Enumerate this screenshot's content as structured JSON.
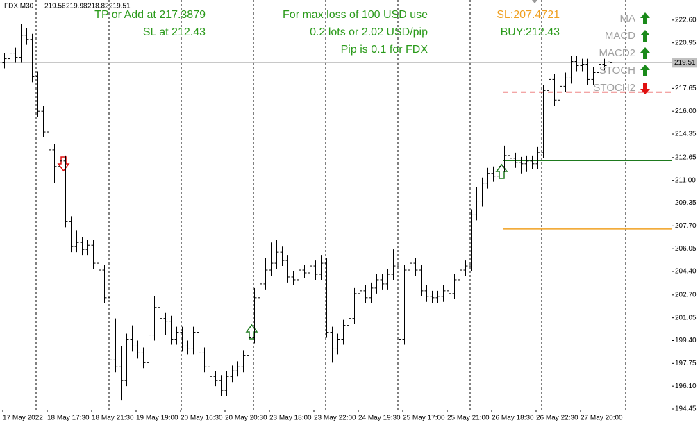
{
  "chart_data": {
    "type": "ohlc",
    "symbol": "FDX,M30",
    "ylim": [
      194.4,
      224.05
    ],
    "yticks": [
      {
        "value": 222.6,
        "label": "222.60"
      },
      {
        "value": 220.95,
        "label": "220.95"
      },
      {
        "value": 217.65,
        "label": "217.65"
      },
      {
        "value": 216.0,
        "label": "216.00"
      },
      {
        "value": 214.35,
        "label": "214.35"
      },
      {
        "value": 212.65,
        "label": "212.65"
      },
      {
        "value": 211.0,
        "label": "211.00"
      },
      {
        "value": 209.35,
        "label": "209.35"
      },
      {
        "value": 207.7,
        "label": "207.70"
      },
      {
        "value": 206.05,
        "label": "206.05"
      },
      {
        "value": 204.4,
        "label": "204.40"
      },
      {
        "value": 202.7,
        "label": "202.70"
      },
      {
        "value": 201.05,
        "label": "201.05"
      },
      {
        "value": 199.4,
        "label": "199.40"
      },
      {
        "value": 197.75,
        "label": "197.75"
      },
      {
        "value": 196.1,
        "label": "196.10"
      },
      {
        "value": 194.45,
        "label": "194.45"
      }
    ],
    "categories": [
      "17 May 2022",
      null,
      null,
      null,
      null,
      null,
      null,
      null,
      "18 May 17:30",
      null,
      null,
      null,
      null,
      null,
      null,
      null,
      "18 May 21:30",
      null,
      null,
      null,
      null,
      null,
      null,
      null,
      "19 May 19:00",
      null,
      null,
      null,
      null,
      null,
      null,
      null,
      "20 May 16:30",
      null,
      null,
      null,
      null,
      null,
      null,
      null,
      "20 May 20:30",
      null,
      null,
      null,
      null,
      null,
      null,
      null,
      "23 May 18:00",
      null,
      null,
      null,
      null,
      null,
      null,
      null,
      "23 May 22:00",
      null,
      null,
      null,
      null,
      null,
      null,
      null,
      "24 May 19:30",
      null,
      null,
      null,
      null,
      null,
      null,
      null,
      "25 May 17:00",
      null,
      null,
      null,
      null,
      null,
      null,
      null,
      "25 May 21:00",
      null,
      null,
      null,
      null,
      null,
      null,
      null,
      "26 May 18:30",
      null,
      null,
      null,
      null,
      null,
      null,
      null,
      "26 May 22:30",
      null,
      null,
      null,
      null,
      null,
      null,
      null,
      "27 May 20:00",
      null,
      null,
      null,
      null,
      null
    ],
    "open": [
      219.5,
      219.8,
      220.2,
      219.9,
      221.5,
      221.2,
      218.5,
      216.0,
      214.5,
      213.2,
      212.0,
      212.4,
      208.0,
      206.2,
      206.5,
      206.0,
      206.3,
      205.0,
      204.5,
      202.5,
      198.0,
      197.5,
      196.5,
      199.5,
      199.0,
      198.5,
      197.8,
      199.8,
      201.8,
      201.0,
      200.8,
      199.5,
      200.0,
      199.0,
      198.8,
      200.0,
      198.5,
      197.5,
      196.8,
      196.5,
      195.8,
      196.8,
      197.2,
      197.5,
      198.3,
      199.6,
      202.5,
      203.5,
      204.5,
      205.0,
      205.8,
      205.2,
      204.0,
      203.8,
      204.5,
      204.3,
      204.8,
      204.2,
      205.0,
      200.0,
      198.8,
      199.5,
      200.5,
      201.0,
      202.8,
      203.0,
      202.5,
      203.2,
      203.8,
      203.5,
      204.2,
      204.8,
      199.5,
      204.5,
      205.0,
      204.5,
      203.0,
      202.6,
      202.5,
      202.6,
      203.0,
      202.8,
      203.8,
      204.5,
      204.8,
      208.5,
      209.5,
      210.8,
      211.5,
      211.3,
      212.0,
      212.8,
      212.6,
      212.3,
      212.2,
      212.4,
      212.2,
      213.0,
      217.5,
      218.3,
      216.8,
      217.8,
      218.4,
      219.6,
      219.3,
      219.4,
      218.3,
      218.8,
      219.4,
      219.56
    ],
    "high": [
      220.2,
      220.6,
      220.6,
      222.3,
      222.0,
      221.6,
      218.9,
      216.4,
      214.9,
      213.6,
      212.8,
      212.8,
      208.4,
      207.4,
      206.9,
      206.7,
      206.7,
      205.4,
      204.9,
      202.9,
      201.0,
      199.0,
      199.9,
      200.5,
      199.4,
      198.9,
      200.2,
      202.6,
      202.2,
      201.4,
      201.2,
      200.4,
      200.4,
      199.4,
      200.4,
      200.4,
      198.9,
      197.9,
      197.2,
      196.9,
      197.2,
      197.6,
      197.9,
      198.7,
      200.0,
      203.2,
      203.9,
      205.4,
      206.5,
      206.7,
      206.2,
      205.6,
      204.4,
      204.9,
      204.9,
      205.2,
      205.2,
      205.6,
      205.4,
      200.4,
      199.9,
      200.9,
      201.4,
      203.2,
      203.4,
      203.4,
      203.6,
      204.2,
      204.2,
      204.6,
      206.0,
      205.2,
      204.9,
      205.6,
      205.4,
      204.9,
      203.4,
      203.0,
      203.0,
      203.4,
      203.4,
      204.2,
      204.9,
      205.2,
      208.9,
      210.5,
      211.2,
      211.9,
      212.0,
      212.4,
      213.5,
      213.5,
      213.0,
      212.7,
      212.8,
      212.8,
      213.4,
      217.9,
      218.7,
      218.7,
      218.2,
      218.8,
      220.0,
      220.0,
      219.8,
      219.8,
      219.2,
      219.8,
      219.8,
      219.98
    ],
    "low": [
      219.1,
      219.4,
      219.5,
      219.5,
      220.8,
      218.1,
      215.6,
      214.1,
      212.8,
      210.8,
      211.0,
      207.6,
      205.8,
      205.8,
      205.6,
      205.6,
      204.6,
      204.1,
      202.1,
      196.0,
      197.1,
      195.1,
      196.1,
      198.6,
      198.1,
      197.4,
      197.4,
      199.4,
      200.6,
      199.8,
      199.1,
      199.1,
      198.6,
      198.4,
      198.4,
      198.1,
      197.1,
      196.4,
      196.1,
      195.4,
      195.4,
      196.4,
      196.8,
      197.1,
      197.9,
      199.2,
      202.1,
      203.1,
      204.1,
      204.6,
      204.8,
      203.6,
      203.4,
      203.4,
      203.9,
      203.9,
      203.8,
      203.8,
      199.6,
      197.8,
      198.4,
      199.1,
      200.1,
      200.6,
      202.4,
      202.1,
      202.1,
      202.8,
      203.1,
      203.1,
      203.8,
      199.1,
      199.1,
      204.1,
      204.1,
      202.6,
      202.2,
      202.1,
      202.1,
      202.2,
      201.8,
      202.4,
      203.4,
      204.1,
      204.4,
      208.1,
      209.1,
      210.4,
      210.9,
      210.9,
      211.6,
      212.2,
      211.9,
      211.5,
      211.6,
      211.8,
      211.8,
      212.6,
      217.1,
      216.4,
      216.4,
      217.4,
      218.0,
      218.9,
      218.9,
      217.9,
      217.9,
      218.4,
      218.9,
      218.82
    ],
    "close": [
      219.8,
      220.2,
      219.9,
      221.5,
      221.2,
      218.5,
      216.0,
      214.5,
      213.2,
      212.0,
      212.4,
      208.0,
      206.2,
      206.5,
      206.0,
      206.3,
      205.0,
      204.5,
      202.5,
      198.0,
      197.5,
      196.5,
      199.5,
      199.0,
      198.5,
      197.8,
      199.8,
      201.8,
      201.0,
      200.8,
      199.5,
      200.0,
      199.0,
      198.8,
      200.0,
      198.5,
      197.5,
      196.8,
      196.5,
      195.8,
      196.8,
      197.2,
      197.5,
      198.3,
      199.6,
      202.5,
      203.5,
      204.5,
      205.0,
      205.8,
      205.2,
      204.0,
      203.8,
      204.5,
      204.3,
      204.8,
      204.2,
      205.0,
      200.0,
      198.8,
      199.5,
      200.5,
      201.0,
      202.8,
      203.0,
      202.5,
      203.2,
      203.8,
      203.5,
      204.2,
      204.8,
      199.5,
      204.5,
      205.0,
      204.5,
      203.0,
      202.6,
      202.5,
      202.6,
      203.0,
      202.8,
      203.8,
      204.5,
      204.8,
      208.5,
      209.5,
      210.8,
      211.5,
      211.3,
      212.0,
      212.8,
      212.6,
      212.3,
      212.2,
      212.4,
      212.2,
      213.0,
      217.5,
      218.3,
      216.8,
      217.8,
      218.4,
      219.6,
      219.3,
      219.4,
      218.3,
      218.8,
      219.4,
      219.3,
      219.51
    ],
    "levels": [
      {
        "value": 217.3879,
        "color": "#e01010",
        "dashed": true
      },
      {
        "value": 212.43,
        "color": "#1e7a1e",
        "dashed": false
      },
      {
        "value": 207.4721,
        "color": "#f0a020",
        "dashed": false
      }
    ],
    "annotations": [
      {
        "text": "TP or Add at 217.3879",
        "color": "#2a9a1a"
      },
      {
        "text": "SL at 212.43",
        "color": "#2a9a1a"
      },
      {
        "text": "For max loss of 100 USD use",
        "color": "#2a9a1a"
      },
      {
        "text": "0.2 lots or 2.02 USD/pip",
        "color": "#2a9a1a"
      },
      {
        "text": "Pip is 0.1 for FDX",
        "color": "#2a9a1a"
      },
      {
        "text": "SL:207.4721",
        "color": "#f0a020"
      },
      {
        "text": "BUY:212.43",
        "color": "#2a9a1a"
      }
    ],
    "indicators": [
      {
        "label": "MA",
        "signal": "up"
      },
      {
        "label": "MACD",
        "signal": "up"
      },
      {
        "label": "MACD2",
        "signal": "up"
      },
      {
        "label": "STOCH",
        "signal": "up"
      },
      {
        "label": "STOCH2",
        "signal": "down"
      }
    ]
  }
}
